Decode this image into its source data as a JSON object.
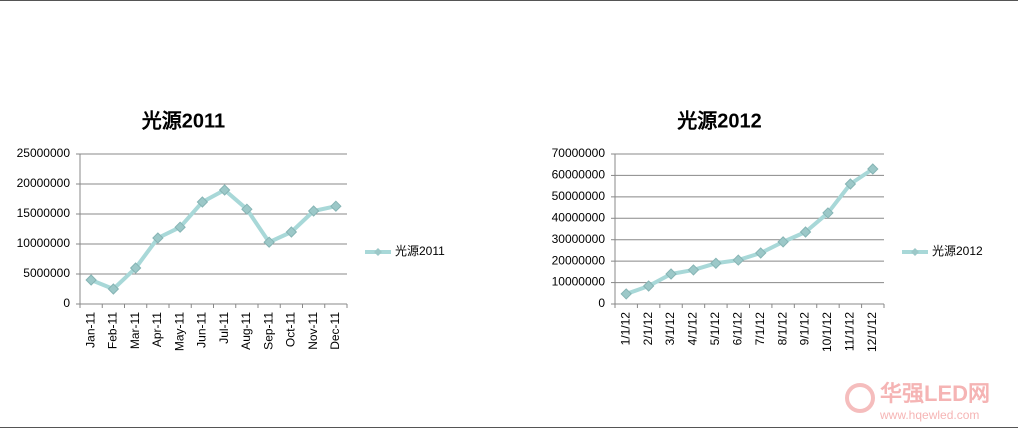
{
  "chart_data": [
    {
      "type": "line",
      "title": "光源2011",
      "categories": [
        "Jan-11",
        "Feb-11",
        "Mar-11",
        "Apr-11",
        "May-11",
        "Jun-11",
        "Jul-11",
        "Aug-11",
        "Sep-11",
        "Oct-11",
        "Nov-11",
        "Dec-11"
      ],
      "series": [
        {
          "name": "光源2011",
          "color": "#a8d8d8",
          "values": [
            4000000,
            2500000,
            6000000,
            11000000,
            12800000,
            17000000,
            19000000,
            15800000,
            10300000,
            12000000,
            15500000,
            16300000
          ]
        }
      ],
      "ylim": [
        0,
        25000000
      ],
      "yticks": [
        0,
        5000000,
        10000000,
        15000000,
        20000000,
        25000000
      ],
      "grid": true,
      "legend": "right"
    },
    {
      "type": "line",
      "title": "光源2012",
      "categories": [
        "1/1/12",
        "2/1/12",
        "3/1/12",
        "4/1/12",
        "5/1/12",
        "6/1/12",
        "7/1/12",
        "8/1/12",
        "9/1/12",
        "10/1/12",
        "11/1/12",
        "12/1/12"
      ],
      "series": [
        {
          "name": "光源2012",
          "color": "#a8d8d8",
          "values": [
            4700000,
            8400000,
            14000000,
            15900000,
            19000000,
            20500000,
            23800000,
            29000000,
            33600000,
            42500000,
            56000000,
            63000000
          ]
        }
      ],
      "ylim": [
        0,
        70000000
      ],
      "yticks": [
        0,
        10000000,
        20000000,
        30000000,
        40000000,
        50000000,
        60000000,
        70000000
      ],
      "grid": true,
      "legend": "right"
    }
  ],
  "watermark": {
    "brand": "华强LED网",
    "url": "www.hqewled.com"
  }
}
